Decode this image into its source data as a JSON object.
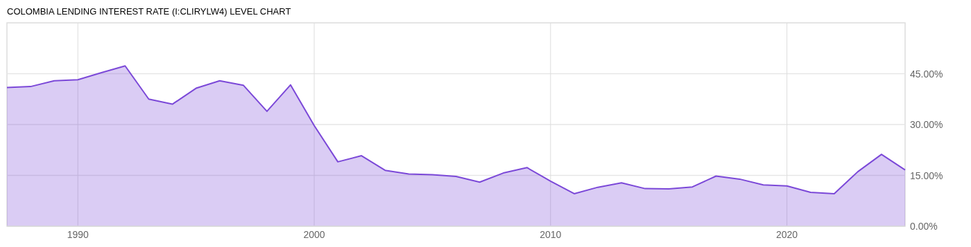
{
  "chart_data": {
    "type": "area",
    "title": "COLOMBIA LENDING INTEREST RATE (I:CLIRYLW4) LEVEL CHART",
    "x": [
      1987,
      1988,
      1989,
      1990,
      1991,
      1992,
      1993,
      1994,
      1995,
      1996,
      1997,
      1998,
      1999,
      2000,
      2001,
      2002,
      2003,
      2004,
      2005,
      2006,
      2007,
      2008,
      2009,
      2010,
      2011,
      2012,
      2013,
      2014,
      2015,
      2016,
      2017,
      2018,
      2019,
      2020,
      2021,
      2022,
      2023,
      2024,
      2025
    ],
    "series": [
      {
        "color": "#7b48d8",
        "values": [
          40.9,
          41.2,
          42.9,
          43.2,
          45.3,
          47.3,
          37.5,
          36.0,
          40.7,
          42.9,
          41.6,
          33.9,
          41.7,
          29.7,
          19.0,
          20.8,
          16.5,
          15.4,
          15.2,
          14.7,
          13.0,
          15.7,
          17.3,
          13.3,
          9.6,
          11.5,
          12.8,
          11.1,
          11.0,
          11.6,
          14.8,
          13.9,
          12.2,
          11.9,
          10.0,
          9.6,
          16.1,
          21.2,
          16.6
        ]
      }
    ],
    "xlim": [
      1987,
      2025
    ],
    "xticks": [
      1990,
      2000,
      2010,
      2020
    ],
    "ylim": [
      0,
      60
    ],
    "yticks": [
      {
        "value": 0,
        "label": "0.00%"
      },
      {
        "value": 15,
        "label": "15.00%"
      },
      {
        "value": 30,
        "label": "30.00%"
      },
      {
        "value": 45,
        "label": "45.00%"
      }
    ],
    "grid": true
  }
}
